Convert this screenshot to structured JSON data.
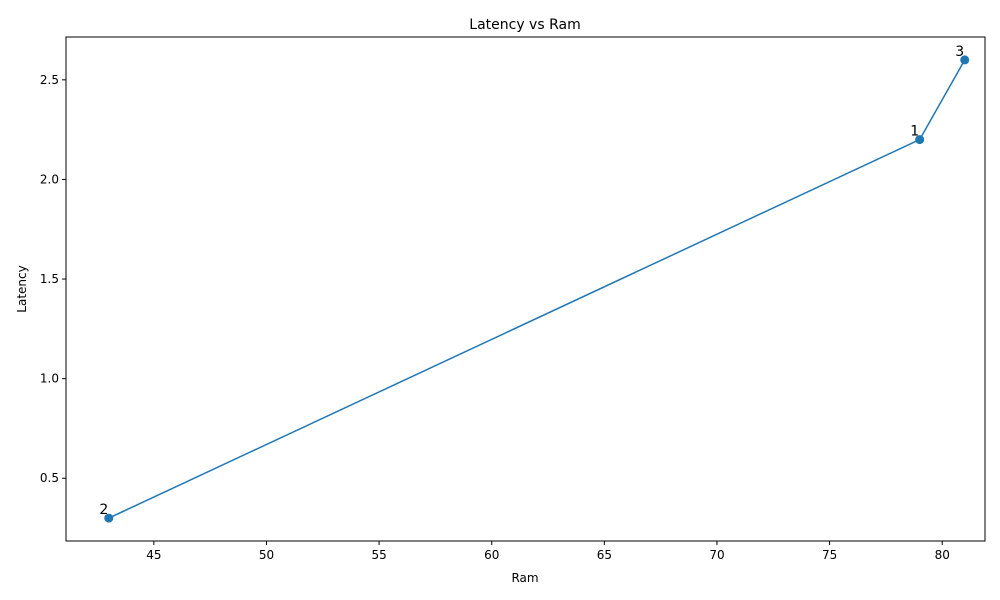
{
  "chart_data": {
    "type": "line",
    "title": "Latency vs Ram",
    "xlabel": "Ram",
    "ylabel": "Latency",
    "xlim": [
      41.1,
      81.9
    ],
    "ylim": [
      0.185,
      2.715
    ],
    "xticks": [
      45,
      50,
      55,
      60,
      65,
      70,
      75,
      80
    ],
    "yticks": [
      0.5,
      1.0,
      1.5,
      2.0,
      2.5
    ],
    "grid": false,
    "legend": "none",
    "series": [
      {
        "color": "#1f77b4",
        "marker": "circle",
        "points": [
          {
            "label": "1",
            "x": 79,
            "y": 2.2
          },
          {
            "label": "2",
            "x": 43,
            "y": 0.3
          },
          {
            "label": "3",
            "x": 81,
            "y": 2.6
          }
        ],
        "line_order": [
          "2",
          "1",
          "3"
        ]
      }
    ]
  }
}
